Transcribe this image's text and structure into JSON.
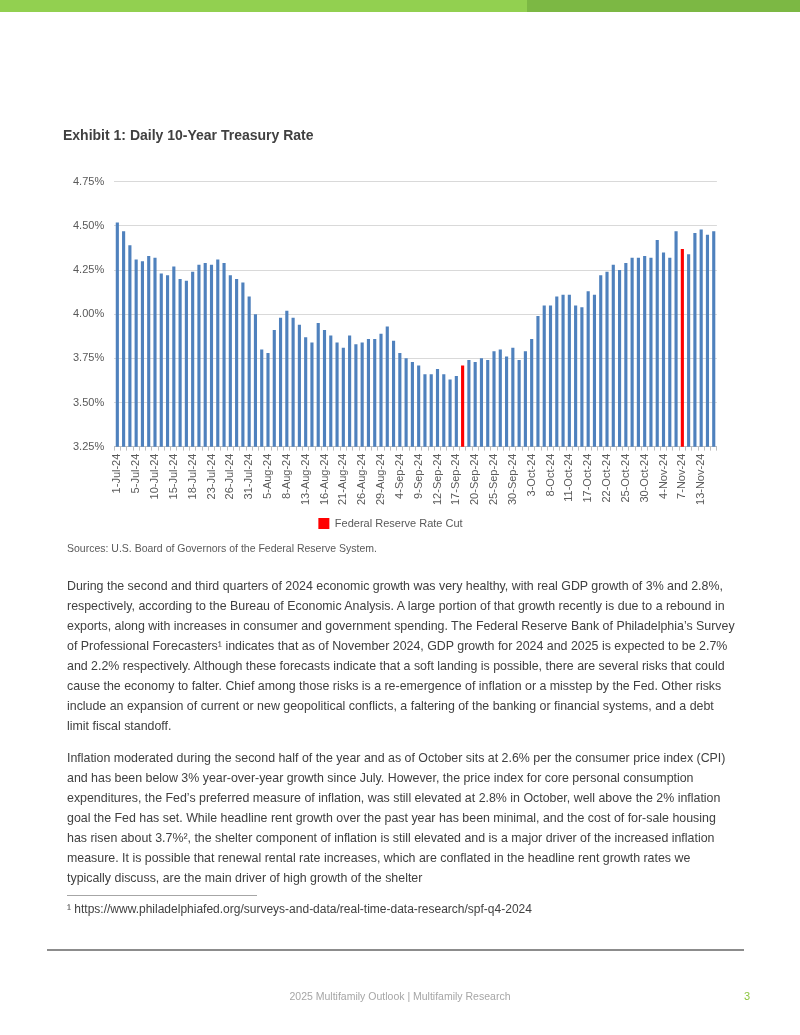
{
  "chart_data": {
    "type": "bar",
    "title": "Exhibit 1: Daily 10-Year Treasury Rate",
    "categories": [
      "1-Jul-24",
      null,
      null,
      "5-Jul-24",
      null,
      null,
      "10-Jul-24",
      null,
      null,
      "15-Jul-24",
      null,
      null,
      "18-Jul-24",
      null,
      null,
      "23-Jul-24",
      null,
      null,
      "26-Jul-24",
      null,
      null,
      "31-Jul-24",
      null,
      null,
      "5-Aug-24",
      null,
      null,
      "8-Aug-24",
      null,
      null,
      "13-Aug-24",
      null,
      null,
      "16-Aug-24",
      null,
      null,
      "21-Aug-24",
      null,
      null,
      "26-Aug-24",
      null,
      null,
      "29-Aug-24",
      null,
      null,
      "4-Sep-24",
      null,
      null,
      "9-Sep-24",
      null,
      null,
      "12-Sep-24",
      null,
      null,
      "17-Sep-24",
      null,
      null,
      "20-Sep-24",
      null,
      null,
      "25-Sep-24",
      null,
      null,
      "30-Sep-24",
      null,
      null,
      "3-Oct-24",
      null,
      null,
      "8-Oct-24",
      null,
      null,
      "11-Oct-24",
      null,
      null,
      "17-Oct-24",
      null,
      null,
      "22-Oct-24",
      null,
      null,
      "25-Oct-24",
      null,
      null,
      "30-Oct-24",
      null,
      null,
      "4-Nov-24",
      null,
      null,
      "7-Nov-24",
      null,
      null,
      "13-Nov-24",
      null,
      null
    ],
    "series": [
      {
        "color": "#4f81bd",
        "values": [
          4.52,
          4.47,
          4.39,
          4.31,
          4.3,
          4.33,
          4.32,
          4.23,
          4.22,
          4.27,
          4.2,
          4.19,
          4.24,
          4.28,
          4.29,
          4.28,
          4.31,
          4.29,
          4.22,
          4.2,
          4.18,
          4.1,
          4.0,
          3.8,
          3.78,
          3.91,
          3.98,
          4.02,
          3.98,
          3.94,
          3.87,
          3.84,
          3.95,
          3.91,
          3.88,
          3.84,
          3.81,
          3.88,
          3.83,
          3.84,
          3.86,
          3.86,
          3.89,
          3.93,
          3.85,
          3.78,
          3.75,
          3.73,
          3.71,
          3.66,
          3.66,
          3.69,
          3.66,
          3.63,
          3.65,
          null,
          3.74,
          3.73,
          3.75,
          3.74,
          3.79,
          3.8,
          3.76,
          3.81,
          3.74,
          3.79,
          3.86,
          3.99,
          4.05,
          4.05,
          4.1,
          4.11,
          4.11,
          4.05,
          4.04,
          4.13,
          4.11,
          4.22,
          4.24,
          4.28,
          4.25,
          4.29,
          4.32,
          4.32,
          4.33,
          4.32,
          4.42,
          4.35,
          4.32,
          4.47,
          null,
          4.34,
          4.46,
          4.48,
          4.45,
          4.47
        ]
      },
      {
        "name": "Federal Reserve Rate Cut",
        "color": "#ff0000",
        "values": [
          null,
          null,
          null,
          null,
          null,
          null,
          null,
          null,
          null,
          null,
          null,
          null,
          null,
          null,
          null,
          null,
          null,
          null,
          null,
          null,
          null,
          null,
          null,
          null,
          null,
          null,
          null,
          null,
          null,
          null,
          null,
          null,
          null,
          null,
          null,
          null,
          null,
          null,
          null,
          null,
          null,
          null,
          null,
          null,
          null,
          null,
          null,
          null,
          null,
          null,
          null,
          null,
          null,
          null,
          null,
          3.71,
          null,
          null,
          null,
          null,
          null,
          null,
          null,
          null,
          null,
          null,
          null,
          null,
          null,
          null,
          null,
          null,
          null,
          null,
          null,
          null,
          null,
          null,
          null,
          null,
          null,
          null,
          null,
          null,
          null,
          null,
          null,
          null,
          null,
          null,
          4.37,
          null,
          null,
          null,
          null,
          null
        ]
      }
    ],
    "stacked": true,
    "ylim": [
      3.25,
      4.75
    ],
    "yticks": [
      {
        "value": 3.25,
        "label": "3.25%"
      },
      {
        "value": 3.5,
        "label": "3.50%"
      },
      {
        "value": 3.75,
        "label": "3.75%"
      },
      {
        "value": 4,
        "label": "4.00%"
      },
      {
        "value": 4.25,
        "label": "4.25%"
      },
      {
        "value": 4.5,
        "label": "4.50%"
      },
      {
        "value": 4.75,
        "label": "4.75%"
      }
    ],
    "grid": "y",
    "legend": "bottom",
    "annotations": [
      "Sources: U.S. Board of Governors of the Federal Reserve System.",
      "During the second and third quarters of 2024 economic growth was very healthy, with real GDP growth of 3% and 2.8%, respectively, according to the Bureau of Economic Analysis. A large portion of that growth recently is due to a rebound in exports, along with increases in consumer and government spending. The Federal Reserve Bank of Philadelphia’s Survey of Professional Forecasters¹ indicates that as of November 2024, GDP growth for 2024 and 2025 is expected to be 2.7% and 2.2% respectively. Although these forecasts indicate that a soft landing is possible, there are several risks that could cause the economy to falter. Chief among those risks is a re-emergence of inflation or a misstep by the Fed. Other risks include an expansion of current or new geopolitical conflicts, a faltering of the banking or financial systems, and a debt limit fiscal standoff.",
      "Inflation moderated during the second half of the year and as of October sits at 2.6% per the consumer price index (CPI) and has been below 3% year-over-year growth since July. However, the price index for core personal consumption expenditures, the Fed’s preferred measure of inflation, was still elevated at 2.8% in October, well above the 2% inflation goal the Fed has set. While headline rent growth over the past year has been minimal, and the cost of for-sale housing has risen about 3.7%², the shelter component of inflation is still elevated and is a major driver of the increased inflation measure. It is possible that renewal rental rate increases, which are conflated in the headline rent growth rates we typically discuss, are the main driver of high growth of the shelter",
      "¹ https://www.philadelphiafed.org/surveys-and-data/real-time-data-research/spf-q4-2024",
      "2025 Multifamily Outlook | Multifamily Research",
      "3"
    ]
  }
}
